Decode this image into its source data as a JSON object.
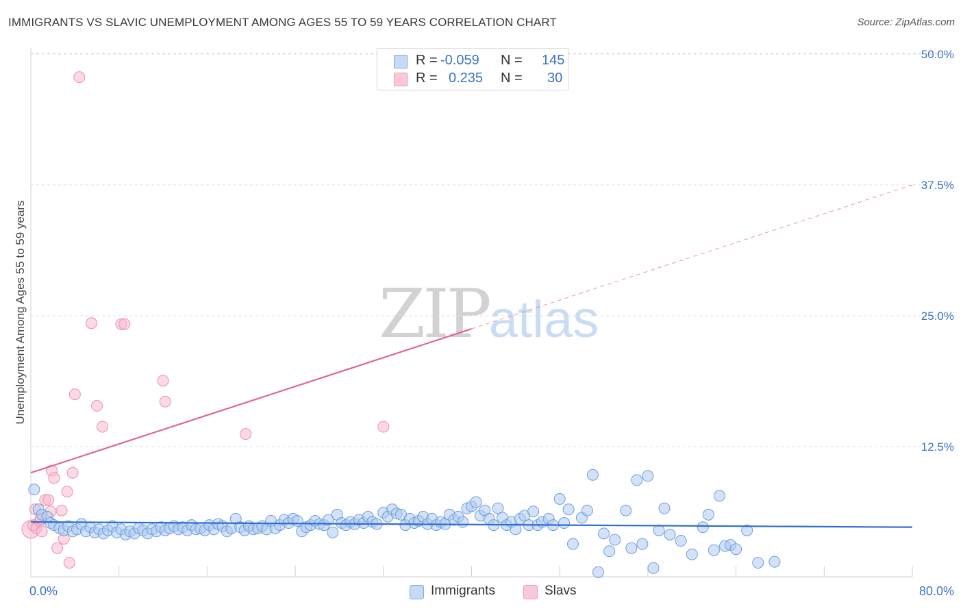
{
  "title": "IMMIGRANTS VS SLAVIC UNEMPLOYMENT AMONG AGES 55 TO 59 YEARS CORRELATION CHART",
  "source": "Source: ZipAtlas.com",
  "watermark": {
    "zip": "ZIP",
    "atlas": "atlas"
  },
  "legend": {
    "r_label": "R =",
    "n_label": "N =",
    "rows": [
      {
        "r": "-0.059",
        "n": "145"
      },
      {
        "r": "0.235",
        "n": "30"
      }
    ]
  },
  "bottom_legend": [
    "Immigrants",
    "Slavs"
  ],
  "colors": {
    "immigrants_fill": "#aecbef",
    "immigrants_stroke": "#6e9ee0",
    "immigrants_line": "#2f6fcf",
    "slavs_fill": "#f7bccd",
    "slavs_stroke": "#ec8fab",
    "slavs_line": "#e06790",
    "axis_text": "#3b72c8",
    "grid": "#dddddd"
  },
  "chart_data": {
    "type": "scatter",
    "title": "IMMIGRANTS VS SLAVIC UNEMPLOYMENT AMONG AGES 55 TO 59 YEARS CORRELATION CHART",
    "xlabel": "",
    "ylabel": "Unemployment Among Ages 55 to 59 years",
    "xlim": [
      0,
      80
    ],
    "ylim": [
      0,
      52
    ],
    "x_tick_labels": [
      "0.0%",
      "80.0%"
    ],
    "y_ticks": [
      12.5,
      25.0,
      37.5,
      50.0
    ],
    "y_tick_labels": [
      "12.5%",
      "25.0%",
      "37.5%",
      "50.0%"
    ],
    "grid": "horizontal dashed",
    "legend_position": "top-center",
    "series": [
      {
        "name": "Immigrants",
        "r": -0.059,
        "n": 145,
        "trend": {
          "x0": 0,
          "y0": 5.3,
          "x1": 80,
          "y1": 4.8
        },
        "points": [
          [
            0.3,
            8.4
          ],
          [
            0.7,
            6.5
          ],
          [
            1.0,
            6.0
          ],
          [
            1.5,
            5.8
          ],
          [
            1.8,
            5.2
          ],
          [
            2.1,
            5.0
          ],
          [
            2.6,
            4.7
          ],
          [
            3.0,
            4.5
          ],
          [
            3.4,
            4.9
          ],
          [
            3.8,
            4.4
          ],
          [
            4.2,
            4.6
          ],
          [
            4.6,
            5.1
          ],
          [
            5.0,
            4.4
          ],
          [
            5.4,
            4.8
          ],
          [
            5.8,
            4.3
          ],
          [
            6.2,
            4.6
          ],
          [
            6.6,
            4.2
          ],
          [
            7.0,
            4.5
          ],
          [
            7.4,
            4.9
          ],
          [
            7.8,
            4.3
          ],
          [
            8.2,
            4.6
          ],
          [
            8.6,
            4.1
          ],
          [
            9.0,
            4.4
          ],
          [
            9.4,
            4.2
          ],
          [
            9.8,
            4.7
          ],
          [
            10.2,
            4.5
          ],
          [
            10.6,
            4.2
          ],
          [
            11.0,
            4.6
          ],
          [
            11.4,
            4.4
          ],
          [
            11.8,
            4.8
          ],
          [
            12.2,
            4.5
          ],
          [
            12.6,
            4.7
          ],
          [
            13.0,
            4.9
          ],
          [
            13.4,
            4.6
          ],
          [
            13.8,
            4.8
          ],
          [
            14.2,
            4.5
          ],
          [
            14.6,
            5.0
          ],
          [
            15.0,
            4.6
          ],
          [
            15.4,
            4.7
          ],
          [
            15.8,
            4.5
          ],
          [
            16.2,
            5.0
          ],
          [
            16.6,
            4.6
          ],
          [
            17.0,
            5.1
          ],
          [
            17.4,
            4.9
          ],
          [
            17.8,
            4.4
          ],
          [
            18.2,
            4.7
          ],
          [
            18.6,
            5.6
          ],
          [
            19.0,
            4.8
          ],
          [
            19.4,
            4.5
          ],
          [
            19.8,
            4.9
          ],
          [
            20.2,
            4.6
          ],
          [
            20.6,
            4.7
          ],
          [
            21.0,
            4.9
          ],
          [
            21.4,
            4.6
          ],
          [
            21.8,
            5.4
          ],
          [
            22.2,
            4.7
          ],
          [
            22.6,
            5.0
          ],
          [
            23.0,
            5.5
          ],
          [
            23.4,
            5.2
          ],
          [
            23.8,
            5.6
          ],
          [
            24.2,
            5.4
          ],
          [
            24.6,
            4.4
          ],
          [
            25.0,
            4.8
          ],
          [
            25.4,
            5.0
          ],
          [
            25.8,
            5.4
          ],
          [
            26.2,
            5.1
          ],
          [
            26.6,
            5.0
          ],
          [
            27.0,
            5.5
          ],
          [
            27.4,
            4.3
          ],
          [
            27.8,
            6.0
          ],
          [
            28.2,
            5.2
          ],
          [
            28.6,
            5.0
          ],
          [
            29.0,
            5.3
          ],
          [
            29.4,
            5.1
          ],
          [
            29.8,
            5.5
          ],
          [
            30.2,
            5.2
          ],
          [
            30.6,
            5.8
          ],
          [
            31.0,
            5.3
          ],
          [
            31.4,
            5.1
          ],
          [
            32.0,
            6.2
          ],
          [
            32.4,
            5.8
          ],
          [
            32.8,
            6.5
          ],
          [
            33.2,
            6.1
          ],
          [
            33.6,
            6.0
          ],
          [
            34.0,
            5.0
          ],
          [
            34.4,
            5.6
          ],
          [
            34.8,
            5.2
          ],
          [
            35.2,
            5.4
          ],
          [
            35.6,
            5.8
          ],
          [
            36.0,
            5.1
          ],
          [
            36.4,
            5.6
          ],
          [
            36.8,
            5.0
          ],
          [
            37.2,
            5.3
          ],
          [
            37.6,
            5.1
          ],
          [
            38.0,
            6.0
          ],
          [
            38.4,
            5.5
          ],
          [
            38.8,
            5.8
          ],
          [
            39.2,
            5.3
          ],
          [
            39.6,
            6.6
          ],
          [
            40.0,
            6.8
          ],
          [
            40.4,
            7.2
          ],
          [
            40.8,
            5.9
          ],
          [
            41.2,
            6.4
          ],
          [
            41.6,
            5.6
          ],
          [
            42.0,
            5.0
          ],
          [
            42.4,
            6.6
          ],
          [
            42.8,
            5.7
          ],
          [
            43.2,
            5.0
          ],
          [
            43.6,
            5.3
          ],
          [
            44.0,
            4.6
          ],
          [
            44.4,
            5.6
          ],
          [
            44.8,
            5.9
          ],
          [
            45.2,
            5.0
          ],
          [
            45.6,
            6.3
          ],
          [
            46.0,
            5.0
          ],
          [
            46.4,
            5.3
          ],
          [
            47.0,
            5.6
          ],
          [
            47.4,
            5.0
          ],
          [
            48.0,
            7.5
          ],
          [
            48.4,
            5.2
          ],
          [
            48.8,
            6.5
          ],
          [
            49.2,
            3.2
          ],
          [
            50.0,
            5.7
          ],
          [
            50.5,
            6.4
          ],
          [
            51.0,
            9.8
          ],
          [
            51.5,
            0.5
          ],
          [
            52.0,
            4.2
          ],
          [
            52.5,
            2.5
          ],
          [
            53.0,
            3.6
          ],
          [
            54.0,
            6.4
          ],
          [
            54.5,
            2.8
          ],
          [
            55.0,
            9.3
          ],
          [
            55.5,
            3.2
          ],
          [
            56.0,
            9.7
          ],
          [
            56.5,
            0.9
          ],
          [
            57.0,
            4.5
          ],
          [
            57.5,
            6.6
          ],
          [
            58.0,
            4.1
          ],
          [
            59.0,
            3.5
          ],
          [
            60.0,
            2.2
          ],
          [
            61.0,
            4.8
          ],
          [
            61.5,
            6.0
          ],
          [
            62.0,
            2.6
          ],
          [
            62.5,
            7.8
          ],
          [
            63.0,
            3.0
          ],
          [
            63.5,
            3.1
          ],
          [
            64.0,
            2.7
          ],
          [
            65.0,
            4.5
          ],
          [
            66.0,
            1.4
          ],
          [
            67.5,
            1.5
          ]
        ]
      },
      {
        "name": "Slavs",
        "r": 0.235,
        "n": 30,
        "trend": {
          "x0": 0,
          "y0": 10.0,
          "x1": 80,
          "y1": 37.5,
          "solid_until_x": 40
        },
        "points": [
          [
            0.0,
            4.6
          ],
          [
            0.2,
            5.0
          ],
          [
            0.5,
            4.7
          ],
          [
            0.8,
            5.4
          ],
          [
            0.4,
            6.5
          ],
          [
            0.9,
            5.6
          ],
          [
            1.0,
            4.4
          ],
          [
            1.3,
            7.4
          ],
          [
            1.6,
            7.4
          ],
          [
            1.8,
            6.3
          ],
          [
            1.9,
            10.2
          ],
          [
            2.1,
            9.5
          ],
          [
            2.4,
            2.8
          ],
          [
            2.8,
            6.4
          ],
          [
            3.0,
            3.7
          ],
          [
            3.3,
            8.2
          ],
          [
            3.5,
            1.4
          ],
          [
            3.8,
            10.0
          ],
          [
            4.0,
            17.5
          ],
          [
            4.4,
            47.8
          ],
          [
            5.5,
            24.3
          ],
          [
            6.0,
            16.4
          ],
          [
            6.5,
            14.4
          ],
          [
            8.2,
            24.2
          ],
          [
            8.5,
            24.2
          ],
          [
            12.0,
            18.8
          ],
          [
            12.2,
            16.8
          ],
          [
            19.5,
            13.7
          ],
          [
            32.0,
            14.4
          ]
        ]
      }
    ]
  }
}
